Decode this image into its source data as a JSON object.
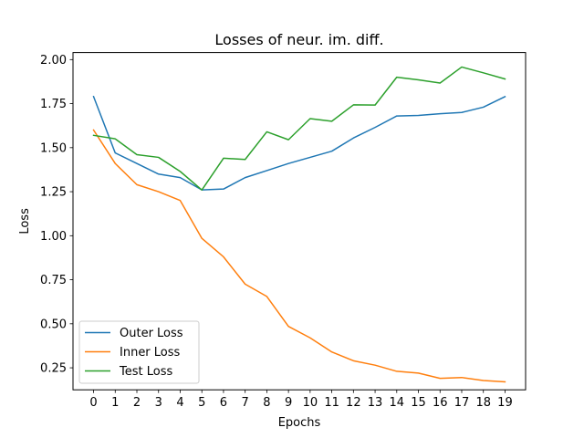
{
  "chart_data": {
    "type": "line",
    "title": "Losses of neur. im. diff.",
    "xlabel": "Epochs",
    "ylabel": "Loss",
    "x": [
      0,
      1,
      2,
      3,
      4,
      5,
      6,
      7,
      8,
      9,
      10,
      11,
      12,
      13,
      14,
      15,
      16,
      17,
      18,
      19
    ],
    "xlim": [
      -0.95,
      19.95
    ],
    "ylim": [
      0.125,
      2.04
    ],
    "yticks": [
      0.25,
      0.5,
      0.75,
      1.0,
      1.25,
      1.5,
      1.75,
      2.0
    ],
    "ytick_labels": [
      "0.25",
      "0.50",
      "0.75",
      "1.00",
      "1.25",
      "1.50",
      "1.75",
      "2.00"
    ],
    "grid": false,
    "legend_position": "lower-left",
    "series": [
      {
        "name": "Outer Loss",
        "color": "#1f77b4",
        "values": [
          1.79,
          1.47,
          1.41,
          1.35,
          1.33,
          1.26,
          1.265,
          1.33,
          1.37,
          1.41,
          1.445,
          1.48,
          1.555,
          1.615,
          1.68,
          1.683,
          1.693,
          1.7,
          1.73,
          1.79
        ]
      },
      {
        "name": "Inner Loss",
        "color": "#ff7f0e",
        "values": [
          1.6,
          1.41,
          1.29,
          1.25,
          1.2,
          0.985,
          0.88,
          0.725,
          0.655,
          0.485,
          0.42,
          0.34,
          0.29,
          0.265,
          0.23,
          0.22,
          0.19,
          0.195,
          0.178,
          0.17
        ]
      },
      {
        "name": "Test Loss",
        "color": "#2ca02c",
        "values": [
          1.57,
          1.55,
          1.46,
          1.445,
          1.365,
          1.26,
          1.44,
          1.433,
          1.59,
          1.545,
          1.665,
          1.65,
          1.743,
          1.742,
          1.9,
          1.885,
          1.867,
          1.958,
          1.925,
          1.89
        ]
      }
    ]
  }
}
